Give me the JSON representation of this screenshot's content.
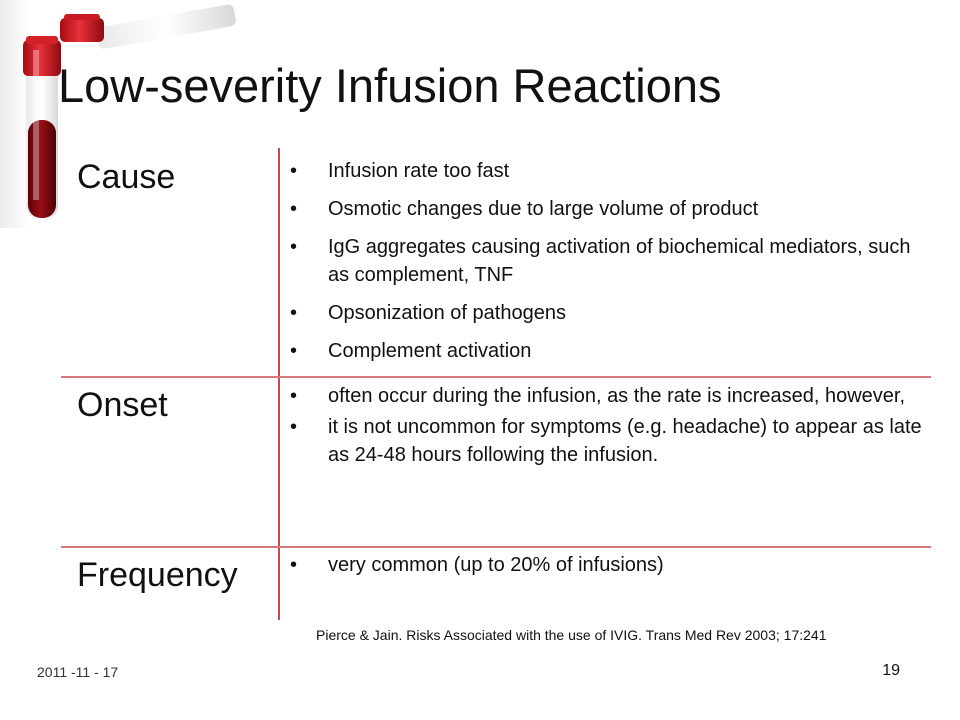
{
  "slide": {
    "title": "Low-severity Infusion Reactions",
    "rows": [
      {
        "label": "Cause",
        "bullets": [
          "Infusion rate too fast",
          "Osmotic changes due to large volume of product",
          "IgG aggregates causing activation of biochemical mediators, such as complement, TNF",
          "Opsonization of pathogens",
          "Complement activation"
        ]
      },
      {
        "label": "Onset",
        "bullets": [
          "often occur during the infusion, as the rate is increased, however,",
          "it is not uncommon for symptoms (e.g. headache) to appear as late as 24-48 hours following the infusion."
        ]
      },
      {
        "label": "Frequency",
        "bullets": [
          "very common (up to 20% of infusions)"
        ]
      }
    ],
    "citation": "Pierce & Jain. Risks Associated with the use of IVIG. Trans Med Rev 2003; 17:241",
    "date": "2011 -11 - 17",
    "page_number": "19"
  },
  "colors": {
    "divider": "#c9474d",
    "vial_red": "#c0141c",
    "blood": "#7a0a10"
  }
}
